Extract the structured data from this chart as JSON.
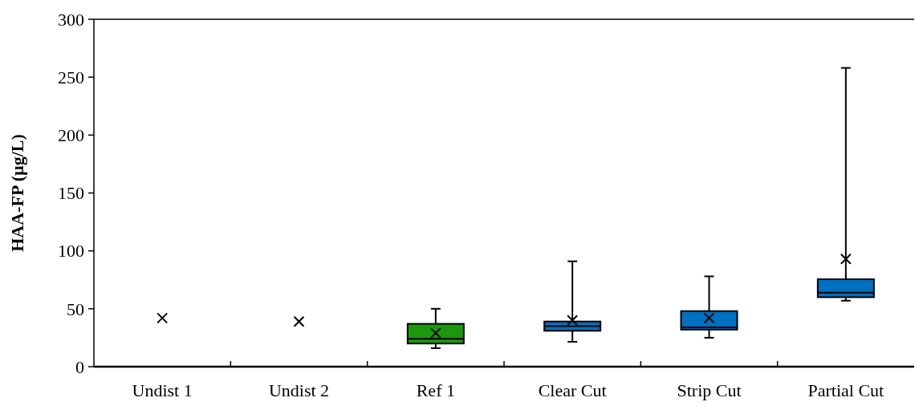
{
  "chart_data": {
    "type": "box",
    "ylabel": "HAA-FP (µg/L)",
    "categories": [
      "Undist 1",
      "Undist 2",
      "Ref 1",
      "Clear Cut",
      "Strip Cut",
      "Partial Cut"
    ],
    "colors": [
      null,
      null,
      "#1a9a0a",
      "#0070c0",
      "#0070c0",
      "#0070c0"
    ],
    "series": [
      {
        "type": "scatter",
        "x": [
          "Undist 1",
          "Undist 2"
        ],
        "values": [
          42,
          39
        ]
      }
    ],
    "boxes": [
      null,
      null,
      {
        "low": 16,
        "q1": 20,
        "median": 24,
        "q3": 37,
        "high": 50,
        "mean": 29
      },
      {
        "low": 21.5,
        "q1": 31,
        "median": 35,
        "q3": 39,
        "high": 91,
        "mean": 40
      },
      {
        "low": 25,
        "q1": 32,
        "median": 34,
        "q3": 48,
        "high": 78,
        "mean": 42
      },
      {
        "low": 57,
        "q1": 60,
        "median": 64,
        "q3": 75.5,
        "high": 258,
        "mean": 93
      }
    ],
    "ylim": [
      0,
      300
    ],
    "yticks": [
      0,
      50,
      100,
      150,
      200,
      250,
      300
    ],
    "grid": false,
    "marker": "cross"
  }
}
